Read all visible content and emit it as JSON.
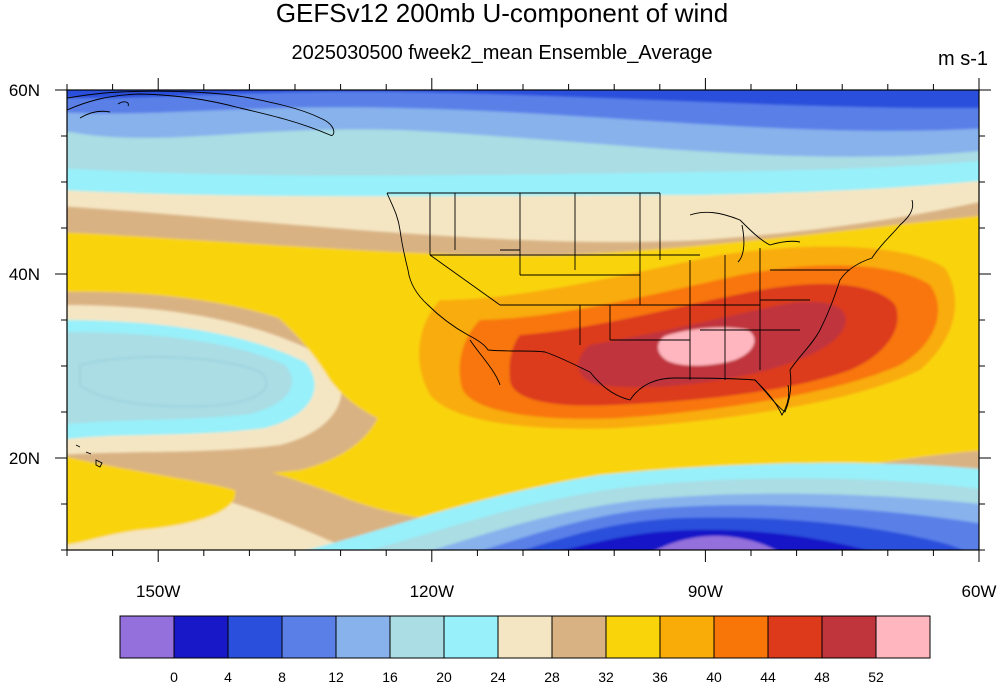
{
  "title": "GEFSv12 200mb U-component of wind",
  "subtitle": "2025030500 fweek2_mean Ensemble_Average",
  "units": "m s-1",
  "map": {
    "lon_range": [
      -160,
      -60
    ],
    "lat_range": [
      10,
      60
    ],
    "lon_labels": [
      {
        "lon": -150,
        "text": "150W"
      },
      {
        "lon": -120,
        "text": "120W"
      },
      {
        "lon": -90,
        "text": "90W"
      },
      {
        "lon": -60,
        "text": "60W"
      }
    ],
    "lat_labels": [
      {
        "lat": 60,
        "text": "60N"
      },
      {
        "lat": 40,
        "text": "40N"
      },
      {
        "lat": 20,
        "text": "20N"
      }
    ]
  },
  "colorbar": {
    "colors": [
      "#9370db",
      "#1818c8",
      "#2a4fdc",
      "#5a80e8",
      "#87b2ec",
      "#aadde4",
      "#98f0fa",
      "#f5e6c3",
      "#d9b283",
      "#f9d40b",
      "#f9ac07",
      "#f87608",
      "#dc3a1a",
      "#c0343c",
      "#ffb6be"
    ],
    "labels": [
      "0",
      "4",
      "8",
      "12",
      "16",
      "20",
      "24",
      "28",
      "32",
      "36",
      "40",
      "44",
      "48",
      "52"
    ]
  }
}
